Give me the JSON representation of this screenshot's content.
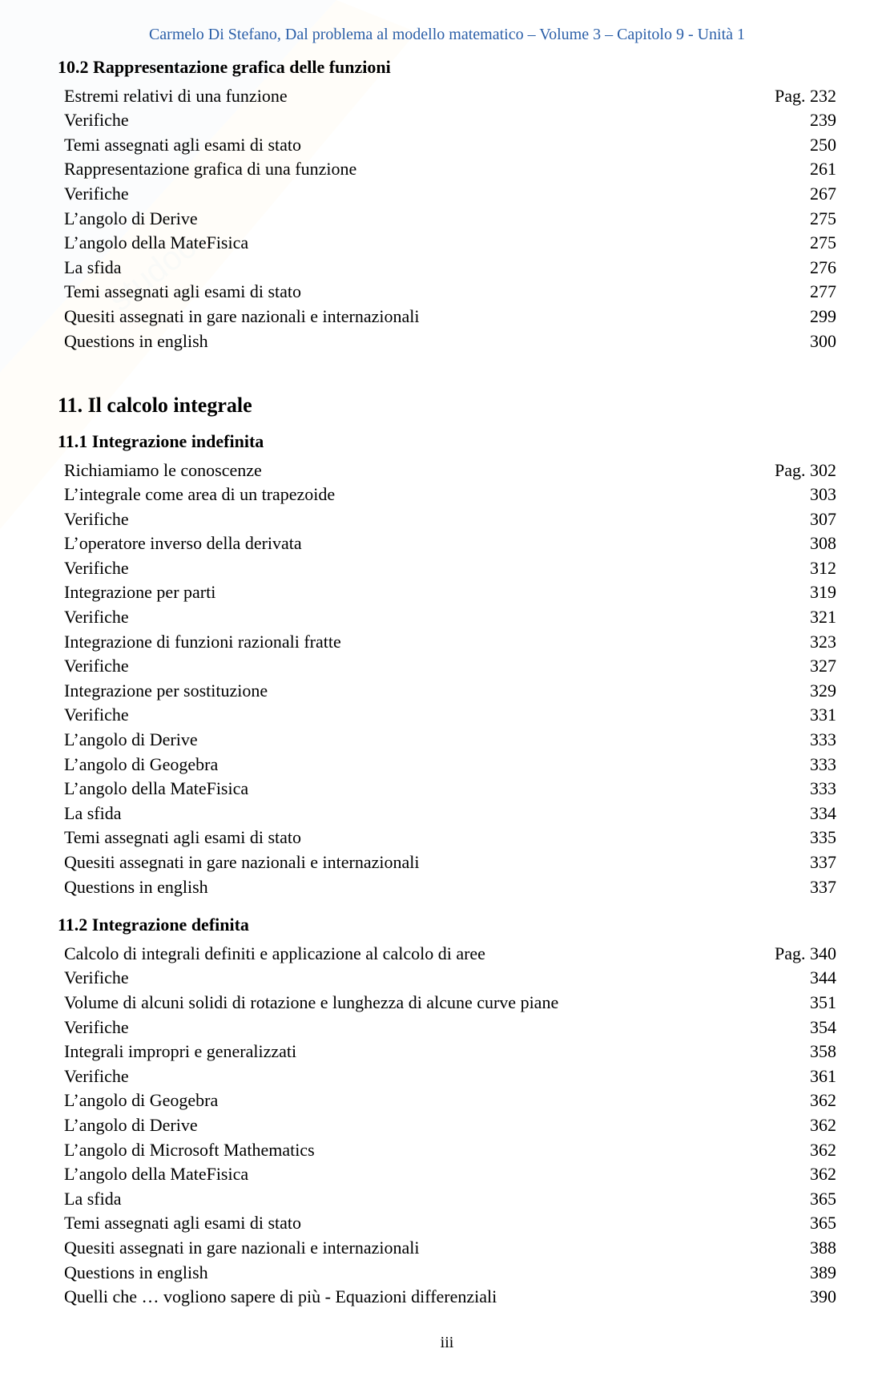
{
  "header": "Carmelo Di Stefano, Dal problema al modello matematico – Volume 3 – Capitolo 9 - Unità 1",
  "footer_page": "iii",
  "colors": {
    "header_text": "#2b5fa8",
    "body_text": "#000000",
    "background": "#ffffff",
    "watermark": "#e8eef6"
  },
  "typography": {
    "body_font": "Times New Roman",
    "body_size_pt": 17,
    "header_size_pt": 15,
    "chapter_title_size_pt": 20,
    "section_title_size_pt": 17
  },
  "sections": [
    {
      "title": "10.2 Rappresentazione grafica delle funzioni",
      "type": "section",
      "page_prefix": "Pag. ",
      "entries": [
        {
          "label": "Estremi relativi di una funzione",
          "page": "232",
          "prefix": true
        },
        {
          "label": "Verifiche",
          "page": "239"
        },
        {
          "label": "Temi assegnati agli esami di stato",
          "page": "250"
        },
        {
          "label": "Rappresentazione grafica di una funzione",
          "page": "261"
        },
        {
          "label": "Verifiche",
          "page": "267"
        },
        {
          "label": "L’angolo di Derive",
          "page": "275"
        },
        {
          "label": "L’angolo della MateFisica",
          "page": "275"
        },
        {
          "label": "La sfida",
          "page": "276"
        },
        {
          "label": "Temi assegnati agli esami di stato",
          "page": "277"
        },
        {
          "label": "Quesiti assegnati in gare nazionali e internazionali",
          "page": "299"
        },
        {
          "label": "Questions in english",
          "page": "300"
        }
      ]
    },
    {
      "title": "11. Il calcolo integrale",
      "type": "chapter"
    },
    {
      "title": "11.1 Integrazione indefinita",
      "type": "section",
      "page_prefix": "Pag. ",
      "entries": [
        {
          "label": "Richiamiamo le conoscenze",
          "page": "302",
          "prefix": true
        },
        {
          "label": "L’integrale come area di un trapezoide",
          "page": "303"
        },
        {
          "label": "Verifiche",
          "page": "307"
        },
        {
          "label": "L’operatore inverso della derivata",
          "page": "308"
        },
        {
          "label": "Verifiche",
          "page": "312"
        },
        {
          "label": "Integrazione per parti",
          "page": "319"
        },
        {
          "label": "Verifiche",
          "page": "321"
        },
        {
          "label": "Integrazione di funzioni razionali fratte",
          "page": "323"
        },
        {
          "label": "Verifiche",
          "page": "327"
        },
        {
          "label": "Integrazione per sostituzione",
          "page": "329"
        },
        {
          "label": "Verifiche",
          "page": "331"
        },
        {
          "label": "L’angolo di Derive",
          "page": "333"
        },
        {
          "label": "L’angolo di Geogebra",
          "page": "333"
        },
        {
          "label": "L’angolo della MateFisica",
          "page": "333"
        },
        {
          "label": "La sfida",
          "page": "334"
        },
        {
          "label": "Temi assegnati agli esami di stato",
          "page": "335"
        },
        {
          "label": "Quesiti assegnati in gare nazionali e internazionali",
          "page": "337"
        },
        {
          "label": "Questions in english",
          "page": "337"
        }
      ]
    },
    {
      "title": "11.2 Integrazione definita",
      "type": "section",
      "page_prefix": "Pag. ",
      "entries": [
        {
          "label": "Calcolo di integrali definiti e applicazione al calcolo di aree",
          "page": "340",
          "prefix": true
        },
        {
          "label": "Verifiche",
          "page": "344"
        },
        {
          "label": "Volume di alcuni solidi di rotazione e lunghezza di alcune curve piane",
          "page": "351"
        },
        {
          "label": "Verifiche",
          "page": "354"
        },
        {
          "label": "Integrali impropri e generalizzati",
          "page": "358"
        },
        {
          "label": "Verifiche",
          "page": "361"
        },
        {
          "label": "L’angolo di Geogebra",
          "page": "362"
        },
        {
          "label": "L’angolo di Derive",
          "page": "362"
        },
        {
          "label": "L’angolo di Microsoft Mathematics",
          "page": "362"
        },
        {
          "label": "L’angolo della MateFisica",
          "page": "362"
        },
        {
          "label": "La sfida",
          "page": "365"
        },
        {
          "label": "Temi assegnati agli esami di stato",
          "page": "365"
        },
        {
          "label": "Quesiti assegnati in gare nazionali e internazionali",
          "page": "388"
        },
        {
          "label": "Questions in english",
          "page": "389"
        },
        {
          "label": "Quelli che … vogliono sapere di più - Equazioni differenziali",
          "page": "390"
        }
      ]
    }
  ]
}
